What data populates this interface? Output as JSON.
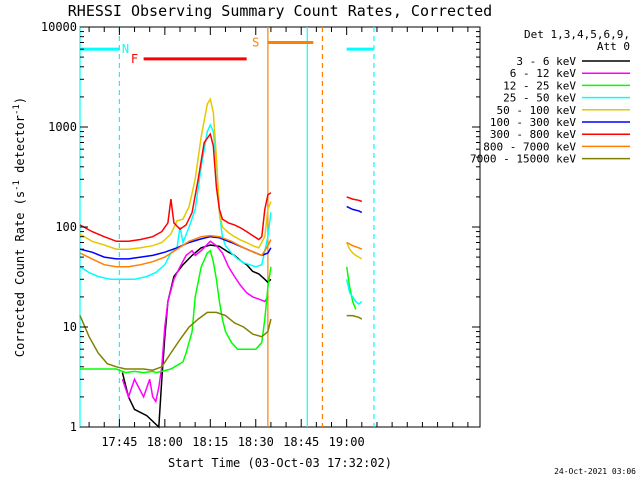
{
  "chart_data": {
    "type": "line",
    "title": "RHESSI Observing Summary Count Rates, Corrected",
    "xlabel": "Start Time (03-Oct-03 17:32:02)",
    "ylabel": "Corrected Count Rate (s^-1 detector^-1)",
    "ylabel_parts": [
      "Corrected Count Rate (s",
      "-1",
      " detector",
      "-1",
      ")"
    ],
    "yscale": "log",
    "ylim": [
      1,
      10000
    ],
    "xlim_min": [
      0,
      132
    ],
    "y_ticks": [
      {
        "label": "1",
        "value": 1
      },
      {
        "label": "10",
        "value": 10
      },
      {
        "label": "100",
        "value": 100
      },
      {
        "label": "1000",
        "value": 1000
      },
      {
        "label": "10000",
        "value": 10000
      }
    ],
    "x_ticks": [
      {
        "label": "17:45",
        "t": 13
      },
      {
        "label": "18:00",
        "t": 28
      },
      {
        "label": "18:15",
        "t": 43
      },
      {
        "label": "18:30",
        "t": 58
      },
      {
        "label": "18:45",
        "t": 73
      },
      {
        "label": "19:00",
        "t": 88
      }
    ],
    "legend_header": [
      "Det 1,3,4,5,6,9,",
      "Att 0"
    ],
    "legend_position": "right",
    "series": [
      {
        "name": "3 - 6 keV",
        "color": "#000000",
        "points": [
          [
            14,
            3.5
          ],
          [
            16,
            2
          ],
          [
            18,
            1.5
          ],
          [
            22,
            1.3
          ],
          [
            26,
            1
          ],
          [
            27,
            3
          ],
          [
            28,
            8
          ],
          [
            29,
            18
          ],
          [
            31,
            32
          ],
          [
            34,
            42
          ],
          [
            37,
            52
          ],
          [
            40,
            62
          ],
          [
            43,
            66
          ],
          [
            46,
            64
          ],
          [
            49,
            56
          ],
          [
            51,
            52
          ],
          [
            53,
            46
          ],
          [
            55,
            42
          ],
          [
            57,
            36
          ],
          [
            59,
            34
          ],
          [
            61,
            30
          ],
          [
            62,
            28
          ],
          [
            63,
            30
          ]
        ],
        "points2": []
      },
      {
        "name": "6 - 12 keV",
        "color": "#ff00ff",
        "points": [
          [
            14,
            3
          ],
          [
            16,
            2
          ],
          [
            18,
            3
          ],
          [
            21,
            2
          ],
          [
            23,
            3
          ],
          [
            24,
            2
          ],
          [
            25,
            1.8
          ],
          [
            26,
            2.5
          ],
          [
            27,
            4
          ],
          [
            28,
            10
          ],
          [
            29,
            18
          ],
          [
            31,
            30
          ],
          [
            33,
            40
          ],
          [
            35,
            52
          ],
          [
            37,
            58
          ],
          [
            38,
            52
          ],
          [
            40,
            58
          ],
          [
            43,
            72
          ],
          [
            45,
            65
          ],
          [
            47,
            55
          ],
          [
            49,
            40
          ],
          [
            51,
            32
          ],
          [
            53,
            26
          ],
          [
            55,
            22
          ],
          [
            57,
            20
          ],
          [
            59,
            19
          ],
          [
            61,
            18
          ],
          [
            62,
            20
          ]
        ],
        "points2": []
      },
      {
        "name": "12 - 25 keV",
        "color": "#00ff00",
        "points": [
          [
            0,
            3.8
          ],
          [
            12,
            3.8
          ],
          [
            15,
            3.5
          ],
          [
            18,
            3.6
          ],
          [
            21,
            3.5
          ],
          [
            24,
            3.6
          ],
          [
            25,
            3.5
          ],
          [
            27,
            3.6
          ],
          [
            30,
            3.8
          ],
          [
            33,
            4.3
          ],
          [
            34,
            4.5
          ],
          [
            35,
            5.5
          ],
          [
            37,
            9
          ],
          [
            38,
            20
          ],
          [
            40,
            40
          ],
          [
            42,
            55
          ],
          [
            43,
            58
          ],
          [
            44,
            45
          ],
          [
            45,
            30
          ],
          [
            46,
            18
          ],
          [
            47,
            12
          ],
          [
            48,
            9
          ],
          [
            50,
            7
          ],
          [
            52,
            6
          ],
          [
            54,
            6
          ],
          [
            56,
            6
          ],
          [
            58,
            6
          ],
          [
            60,
            7
          ],
          [
            61,
            12
          ],
          [
            62,
            25
          ],
          [
            63,
            40
          ]
        ],
        "points2": [
          [
            88,
            40
          ],
          [
            89,
            25
          ],
          [
            90,
            18
          ],
          [
            91,
            15
          ]
        ]
      },
      {
        "name": "25 - 50 keV",
        "color": "#00ffff",
        "points": [
          [
            0,
            40
          ],
          [
            3,
            35
          ],
          [
            6,
            32
          ],
          [
            10,
            30
          ],
          [
            14,
            30
          ],
          [
            18,
            30
          ],
          [
            22,
            32
          ],
          [
            25,
            35
          ],
          [
            28,
            42
          ],
          [
            30,
            55
          ],
          [
            32,
            62
          ],
          [
            33,
            100
          ],
          [
            34,
            70
          ],
          [
            36,
            100
          ],
          [
            38,
            150
          ],
          [
            40,
            400
          ],
          [
            42,
            900
          ],
          [
            43,
            1050
          ],
          [
            44,
            900
          ],
          [
            45,
            450
          ],
          [
            46,
            140
          ],
          [
            47,
            80
          ],
          [
            48,
            65
          ],
          [
            50,
            55
          ],
          [
            52,
            48
          ],
          [
            54,
            44
          ],
          [
            56,
            42
          ],
          [
            58,
            40
          ],
          [
            60,
            42
          ],
          [
            62,
            80
          ],
          [
            63,
            140
          ]
        ],
        "points2": [
          [
            88,
            30
          ],
          [
            89,
            22
          ],
          [
            90,
            20
          ],
          [
            91,
            18
          ],
          [
            92,
            17
          ],
          [
            93,
            18
          ]
        ]
      },
      {
        "name": "50 - 100 keV",
        "color": "#e6c800",
        "points": [
          [
            0,
            85
          ],
          [
            4,
            72
          ],
          [
            8,
            66
          ],
          [
            12,
            60
          ],
          [
            16,
            60
          ],
          [
            20,
            62
          ],
          [
            24,
            65
          ],
          [
            27,
            70
          ],
          [
            30,
            85
          ],
          [
            32,
            115
          ],
          [
            34,
            120
          ],
          [
            36,
            160
          ],
          [
            38,
            300
          ],
          [
            40,
            800
          ],
          [
            42,
            1700
          ],
          [
            43,
            1900
          ],
          [
            44,
            1400
          ],
          [
            45,
            500
          ],
          [
            46,
            140
          ],
          [
            47,
            100
          ],
          [
            49,
            88
          ],
          [
            51,
            80
          ],
          [
            53,
            74
          ],
          [
            55,
            70
          ],
          [
            57,
            65
          ],
          [
            59,
            62
          ],
          [
            61,
            80
          ],
          [
            62,
            150
          ],
          [
            63,
            180
          ]
        ],
        "points2": [
          [
            88,
            70
          ],
          [
            89,
            60
          ],
          [
            90,
            55
          ],
          [
            91,
            52
          ],
          [
            92,
            50
          ],
          [
            93,
            48
          ]
        ]
      },
      {
        "name": "100 - 300 keV",
        "color": "#0000ff",
        "points": [
          [
            0,
            60
          ],
          [
            4,
            56
          ],
          [
            8,
            50
          ],
          [
            12,
            48
          ],
          [
            16,
            48
          ],
          [
            20,
            50
          ],
          [
            24,
            52
          ],
          [
            28,
            56
          ],
          [
            32,
            62
          ],
          [
            36,
            70
          ],
          [
            40,
            76
          ],
          [
            43,
            80
          ],
          [
            46,
            78
          ],
          [
            50,
            70
          ],
          [
            54,
            62
          ],
          [
            58,
            55
          ],
          [
            60,
            52
          ],
          [
            62,
            55
          ],
          [
            63,
            62
          ]
        ],
        "points2": [
          [
            88,
            160
          ],
          [
            90,
            150
          ],
          [
            92,
            145
          ],
          [
            93,
            140
          ]
        ]
      },
      {
        "name": "300 - 800 keV",
        "color": "#ff0000",
        "points": [
          [
            0,
            105
          ],
          [
            4,
            90
          ],
          [
            8,
            80
          ],
          [
            12,
            72
          ],
          [
            16,
            72
          ],
          [
            20,
            75
          ],
          [
            24,
            80
          ],
          [
            27,
            90
          ],
          [
            29,
            110
          ],
          [
            30,
            190
          ],
          [
            31,
            110
          ],
          [
            33,
            95
          ],
          [
            35,
            105
          ],
          [
            37,
            140
          ],
          [
            39,
            300
          ],
          [
            41,
            700
          ],
          [
            43,
            850
          ],
          [
            44,
            650
          ],
          [
            45,
            250
          ],
          [
            46,
            150
          ],
          [
            47,
            120
          ],
          [
            49,
            110
          ],
          [
            51,
            105
          ],
          [
            53,
            98
          ],
          [
            55,
            90
          ],
          [
            57,
            82
          ],
          [
            59,
            75
          ],
          [
            60,
            80
          ],
          [
            61,
            150
          ],
          [
            62,
            210
          ],
          [
            63,
            220
          ]
        ],
        "points2": [
          [
            88,
            200
          ],
          [
            90,
            190
          ],
          [
            92,
            185
          ],
          [
            93,
            180
          ]
        ]
      },
      {
        "name": "800 - 7000 keV",
        "color": "#ff8000",
        "points": [
          [
            0,
            55
          ],
          [
            4,
            48
          ],
          [
            8,
            42
          ],
          [
            12,
            40
          ],
          [
            16,
            40
          ],
          [
            20,
            42
          ],
          [
            24,
            45
          ],
          [
            28,
            50
          ],
          [
            32,
            60
          ],
          [
            36,
            72
          ],
          [
            40,
            80
          ],
          [
            43,
            82
          ],
          [
            46,
            80
          ],
          [
            50,
            72
          ],
          [
            54,
            62
          ],
          [
            58,
            55
          ],
          [
            60,
            52
          ],
          [
            62,
            65
          ],
          [
            63,
            75
          ]
        ],
        "points2": [
          [
            88,
            70
          ],
          [
            90,
            65
          ],
          [
            92,
            62
          ],
          [
            93,
            60
          ]
        ]
      },
      {
        "name": "7000 - 15000 keV",
        "color": "#808000",
        "points": [
          [
            0,
            13
          ],
          [
            3,
            8
          ],
          [
            6,
            5.5
          ],
          [
            9,
            4.3
          ],
          [
            12,
            4
          ],
          [
            15,
            3.8
          ],
          [
            18,
            3.8
          ],
          [
            21,
            3.8
          ],
          [
            24,
            3.7
          ],
          [
            27,
            4
          ],
          [
            30,
            5.5
          ],
          [
            33,
            7.5
          ],
          [
            36,
            10
          ],
          [
            39,
            12
          ],
          [
            42,
            14
          ],
          [
            45,
            14
          ],
          [
            48,
            13
          ],
          [
            51,
            11
          ],
          [
            54,
            10
          ],
          [
            57,
            8.5
          ],
          [
            60,
            8
          ],
          [
            62,
            9
          ],
          [
            63,
            12
          ]
        ],
        "points2": [
          [
            88,
            13
          ],
          [
            90,
            13
          ],
          [
            92,
            12.5
          ],
          [
            93,
            12
          ]
        ]
      }
    ],
    "flag_bars": [
      {
        "label": "N",
        "color": "#00ffff",
        "y": 6000,
        "segments": [
          [
            0,
            13
          ],
          [
            88,
            97
          ]
        ],
        "label_t": 15
      },
      {
        "label": "F",
        "color": "#ff0000",
        "y": 4800,
        "segments": [
          [
            21,
            55
          ]
        ],
        "label_t": 18
      },
      {
        "label": "S",
        "color": "#ff8000",
        "y": 7000,
        "segments": [
          [
            62,
            77
          ]
        ],
        "label_t": 58
      }
    ],
    "vlines": [
      {
        "t": 0,
        "color": "#00ffff",
        "dashed": false
      },
      {
        "t": 13,
        "color": "#00ffff",
        "dashed": true
      },
      {
        "t": 62,
        "color": "#ff8000",
        "dashed": false
      },
      {
        "t": 75,
        "color": "#00ffff",
        "dashed": false
      },
      {
        "t": 80,
        "color": "#ff8000",
        "dashed": true
      },
      {
        "t": 97,
        "color": "#00ffff",
        "dashed": true
      }
    ],
    "grid": false
  },
  "timestamp": "24-Oct-2021 03:06"
}
